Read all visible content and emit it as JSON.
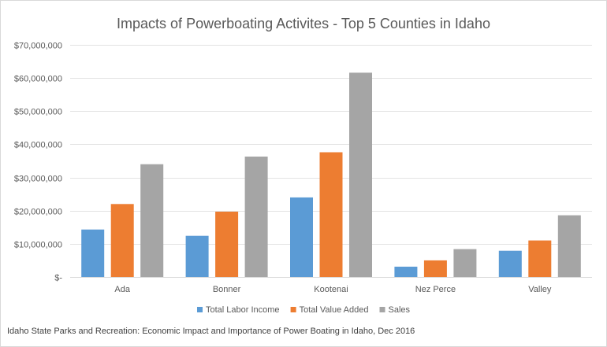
{
  "chart_data": {
    "type": "bar",
    "title": "Impacts of Powerboating Activites - Top 5 Counties in Idaho",
    "categories": [
      "Ada",
      "Bonner",
      "Kootenai",
      "Nez Perce",
      "Valley"
    ],
    "series": [
      {
        "name": "Total Labor Income",
        "color": "#5b9bd5",
        "values": [
          14300000,
          12400000,
          24000000,
          3100000,
          7900000
        ]
      },
      {
        "name": "Total Value Added",
        "color": "#ed7d31",
        "values": [
          22000000,
          19700000,
          37600000,
          5000000,
          11000000
        ]
      },
      {
        "name": "Sales",
        "color": "#a5a5a5",
        "values": [
          34000000,
          36300000,
          61600000,
          8400000,
          18600000
        ]
      }
    ],
    "ylim": [
      0,
      70000000
    ],
    "yticks": [
      0,
      10000000,
      20000000,
      30000000,
      40000000,
      50000000,
      60000000,
      70000000
    ],
    "ytick_labels": [
      "$-",
      "$10,000,000",
      "$20,000,000",
      "$30,000,000",
      "$40,000,000",
      "$50,000,000",
      "$60,000,000",
      "$70,000,000"
    ],
    "xlabel": "",
    "ylabel": "",
    "grid": true,
    "legend_position": "bottom"
  },
  "source_note": "Idaho State Parks and Recreation: Economic Impact and Importance of Power Boating in Idaho, Dec 2016"
}
